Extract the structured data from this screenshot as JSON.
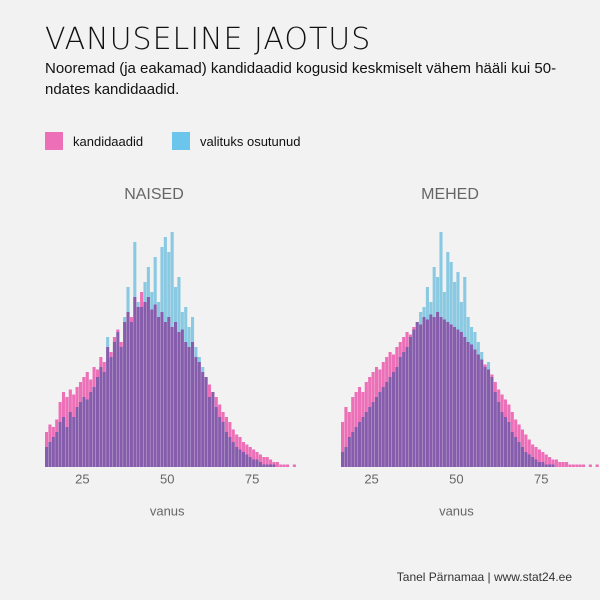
{
  "header": {
    "title": "VANUSELINE JAOTUS",
    "subtitle": "Nooremad (ja eakamad) kandidaadid kogusid keskmiselt vähem hääli kui 50-ndates kandidaadid."
  },
  "credit": "Tanel Pärnamaa | www.stat24.ee",
  "chart_data": [
    {
      "type": "histogram",
      "title": "NAISED",
      "xlabel": "vanus",
      "bins": [
        14,
        15,
        16,
        17,
        18,
        19,
        20,
        21,
        22,
        23,
        24,
        25,
        26,
        27,
        28,
        29,
        30,
        31,
        32,
        33,
        34,
        35,
        36,
        37,
        38,
        39,
        40,
        41,
        42,
        43,
        44,
        45,
        46,
        47,
        48,
        49,
        50,
        51,
        52,
        53,
        54,
        55,
        56,
        57,
        58,
        59,
        60,
        61,
        62,
        63,
        64,
        65,
        66,
        67,
        68,
        69,
        70,
        71,
        72,
        73,
        74,
        75,
        76,
        77,
        78,
        79,
        80,
        81,
        82,
        83,
        84,
        85,
        86,
        87,
        88
      ],
      "xlim": [
        14,
        90
      ],
      "xticks": [
        25,
        50,
        75
      ],
      "ylim": [
        0,
        100
      ],
      "series": [
        {
          "name": "kandidaadid",
          "color": "#ec6fb8",
          "values": [
            14,
            17,
            16,
            19,
            26,
            30,
            28,
            31,
            29,
            32,
            34,
            36,
            38,
            35,
            40,
            39,
            44,
            42,
            48,
            46,
            52,
            55,
            50,
            58,
            62,
            60,
            68,
            64,
            70,
            66,
            68,
            63,
            65,
            60,
            62,
            58,
            60,
            56,
            58,
            54,
            55,
            50,
            48,
            50,
            44,
            42,
            38,
            36,
            33,
            30,
            28,
            25,
            22,
            20,
            18,
            15,
            13,
            12,
            10,
            9,
            8,
            7,
            6,
            5,
            4,
            4,
            3,
            2,
            2,
            1,
            1,
            1,
            0,
            1
          ]
        },
        {
          "name": "valituks osutunud",
          "color": "#6cc5ea",
          "values": [
            8,
            10,
            12,
            14,
            18,
            20,
            16,
            22,
            20,
            24,
            26,
            28,
            27,
            30,
            32,
            36,
            40,
            38,
            52,
            44,
            50,
            54,
            48,
            60,
            72,
            58,
            90,
            66,
            64,
            74,
            80,
            70,
            84,
            66,
            88,
            92,
            86,
            94,
            72,
            76,
            62,
            64,
            56,
            60,
            48,
            44,
            40,
            36,
            28,
            30,
            24,
            20,
            18,
            14,
            12,
            10,
            8,
            7,
            6,
            5,
            4,
            3,
            3,
            2,
            1,
            1,
            1,
            1,
            0,
            0,
            0,
            0,
            0,
            0
          ]
        }
      ]
    },
    {
      "type": "histogram",
      "title": "MEHED",
      "xlabel": "vanus",
      "bins": [
        16,
        17,
        18,
        19,
        20,
        21,
        22,
        23,
        24,
        25,
        26,
        27,
        28,
        29,
        30,
        31,
        32,
        33,
        34,
        35,
        36,
        37,
        38,
        39,
        40,
        41,
        42,
        43,
        44,
        45,
        46,
        47,
        48,
        49,
        50,
        51,
        52,
        53,
        54,
        55,
        56,
        57,
        58,
        59,
        60,
        61,
        62,
        63,
        64,
        65,
        66,
        67,
        68,
        69,
        70,
        71,
        72,
        73,
        74,
        75,
        76,
        77,
        78,
        79,
        80,
        81,
        82,
        83,
        84,
        85,
        86,
        87,
        88,
        89,
        90,
        91,
        92
      ],
      "xlim": [
        16,
        92
      ],
      "xticks": [
        25,
        50,
        75
      ],
      "ylim": [
        0,
        100
      ],
      "series": [
        {
          "name": "kandidaadid",
          "color": "#ec6fb8",
          "values": [
            18,
            24,
            22,
            28,
            30,
            32,
            30,
            34,
            36,
            38,
            40,
            39,
            42,
            44,
            46,
            45,
            48,
            50,
            52,
            54,
            53,
            56,
            58,
            57,
            60,
            59,
            61,
            60,
            62,
            60,
            59,
            58,
            57,
            56,
            55,
            54,
            52,
            50,
            49,
            47,
            45,
            43,
            41,
            39,
            37,
            34,
            31,
            29,
            27,
            25,
            22,
            19,
            17,
            15,
            13,
            11,
            9,
            8,
            7,
            6,
            5,
            4,
            3,
            3,
            2,
            2,
            2,
            1,
            1,
            1,
            1,
            1,
            0,
            1,
            0,
            1
          ]
        },
        {
          "name": "valituks osutunud",
          "color": "#6cc5ea",
          "values": [
            6,
            8,
            12,
            14,
            16,
            18,
            20,
            22,
            24,
            26,
            28,
            30,
            32,
            34,
            36,
            38,
            40,
            44,
            46,
            48,
            52,
            55,
            58,
            62,
            64,
            72,
            66,
            80,
            76,
            94,
            70,
            86,
            82,
            74,
            78,
            66,
            76,
            60,
            56,
            54,
            50,
            46,
            40,
            42,
            36,
            30,
            26,
            22,
            20,
            18,
            14,
            12,
            10,
            8,
            6,
            5,
            4,
            3,
            2,
            2,
            1,
            1,
            1,
            0,
            0,
            0,
            0,
            0,
            0,
            0,
            0,
            0,
            0,
            0,
            0,
            0
          ]
        }
      ]
    }
  ]
}
